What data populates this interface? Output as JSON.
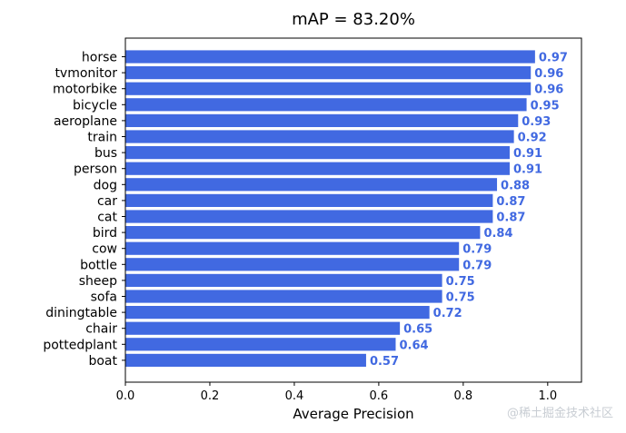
{
  "chart_data": {
    "type": "bar",
    "orientation": "horizontal",
    "title": "mAP = 83.20%",
    "xlabel": "Average Precision",
    "ylabel": "",
    "xlim": [
      0,
      1.08
    ],
    "xticks": [
      0.0,
      0.2,
      0.4,
      0.6,
      0.8,
      1.0
    ],
    "xtick_labels": [
      "0.0",
      "0.2",
      "0.4",
      "0.6",
      "0.8",
      "1.0"
    ],
    "categories": [
      "horse",
      "tvmonitor",
      "motorbike",
      "bicycle",
      "aeroplane",
      "train",
      "bus",
      "person",
      "dog",
      "car",
      "cat",
      "bird",
      "cow",
      "bottle",
      "sheep",
      "sofa",
      "diningtable",
      "chair",
      "pottedplant",
      "boat"
    ],
    "values": [
      0.97,
      0.96,
      0.96,
      0.95,
      0.93,
      0.92,
      0.91,
      0.91,
      0.88,
      0.87,
      0.87,
      0.84,
      0.79,
      0.79,
      0.75,
      0.75,
      0.72,
      0.65,
      0.64,
      0.57
    ],
    "value_labels": [
      "0.97",
      "0.96",
      "0.96",
      "0.95",
      "0.93",
      "0.92",
      "0.91",
      "0.91",
      "0.88",
      "0.87",
      "0.87",
      "0.84",
      "0.79",
      "0.79",
      "0.75",
      "0.75",
      "0.72",
      "0.65",
      "0.64",
      "0.57"
    ],
    "bar_color": "#4169e1",
    "label_color": "#4169e1",
    "grid": false,
    "legend": false
  },
  "watermark": "@稀土掘金技术社区"
}
